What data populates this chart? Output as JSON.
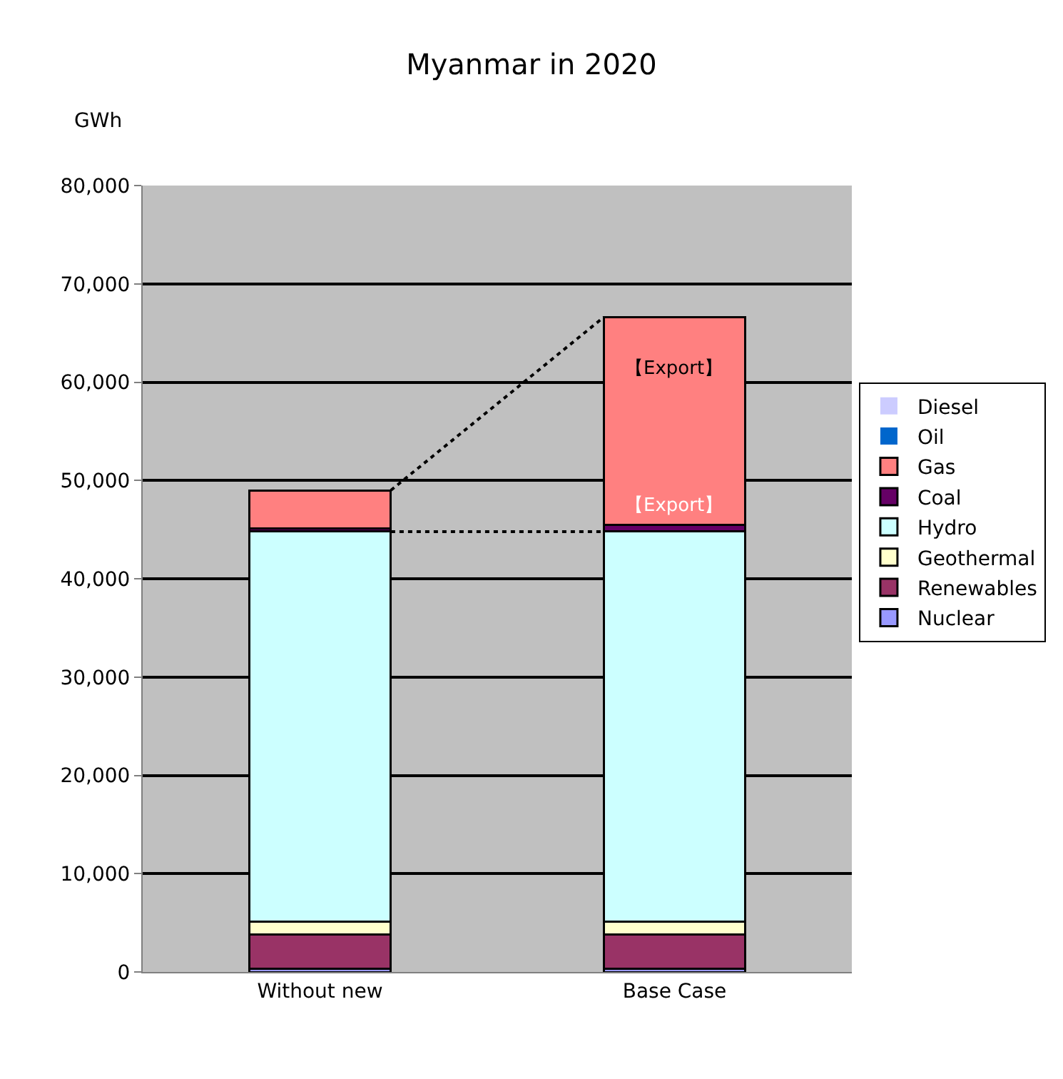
{
  "chart_data": {
    "type": "bar",
    "stacked": true,
    "title": "Myanmar in 2020",
    "ylabel": "GWh",
    "categories": [
      "Without new",
      "Base Case"
    ],
    "series": [
      {
        "name": "Nuclear",
        "color": "#9999ff",
        "values": [
          300,
          300
        ]
      },
      {
        "name": "Renewables",
        "color": "#993366",
        "values": [
          3500,
          3500
        ]
      },
      {
        "name": "Geothermal",
        "color": "#ffffcc",
        "values": [
          1300,
          1300
        ]
      },
      {
        "name": "Hydro",
        "color": "#ccffff",
        "values": [
          39700,
          39700
        ]
      },
      {
        "name": "Coal",
        "color": "#660066",
        "values": [
          300,
          700
        ]
      },
      {
        "name": "Gas",
        "color": "#ff8080",
        "values": [
          3900,
          21100
        ]
      },
      {
        "name": "Oil",
        "color": "#0066cc",
        "values": [
          0,
          0
        ]
      },
      {
        "name": "Diesel",
        "color": "#ccccff",
        "values": [
          0,
          0
        ]
      }
    ],
    "annotations": [
      "【Export】",
      {
        "text": "【Export】",
        "x": "Base Case",
        "y": 46000
      }
    ],
    "ylim": [
      0,
      80000
    ],
    "yticks": [
      {
        "value": 0,
        "label": "0"
      },
      {
        "value": 10000,
        "label": "10,000"
      },
      {
        "value": 20000,
        "label": "20,000"
      },
      {
        "value": 30000,
        "label": "30,000"
      },
      {
        "value": 40000,
        "label": "40,000"
      },
      {
        "value": 50000,
        "label": "50,000"
      },
      {
        "value": 60000,
        "label": "60,000"
      },
      {
        "value": 70000,
        "label": "70,000"
      },
      {
        "value": 80000,
        "label": "80,000"
      }
    ],
    "grid": "y",
    "legend": "right"
  }
}
